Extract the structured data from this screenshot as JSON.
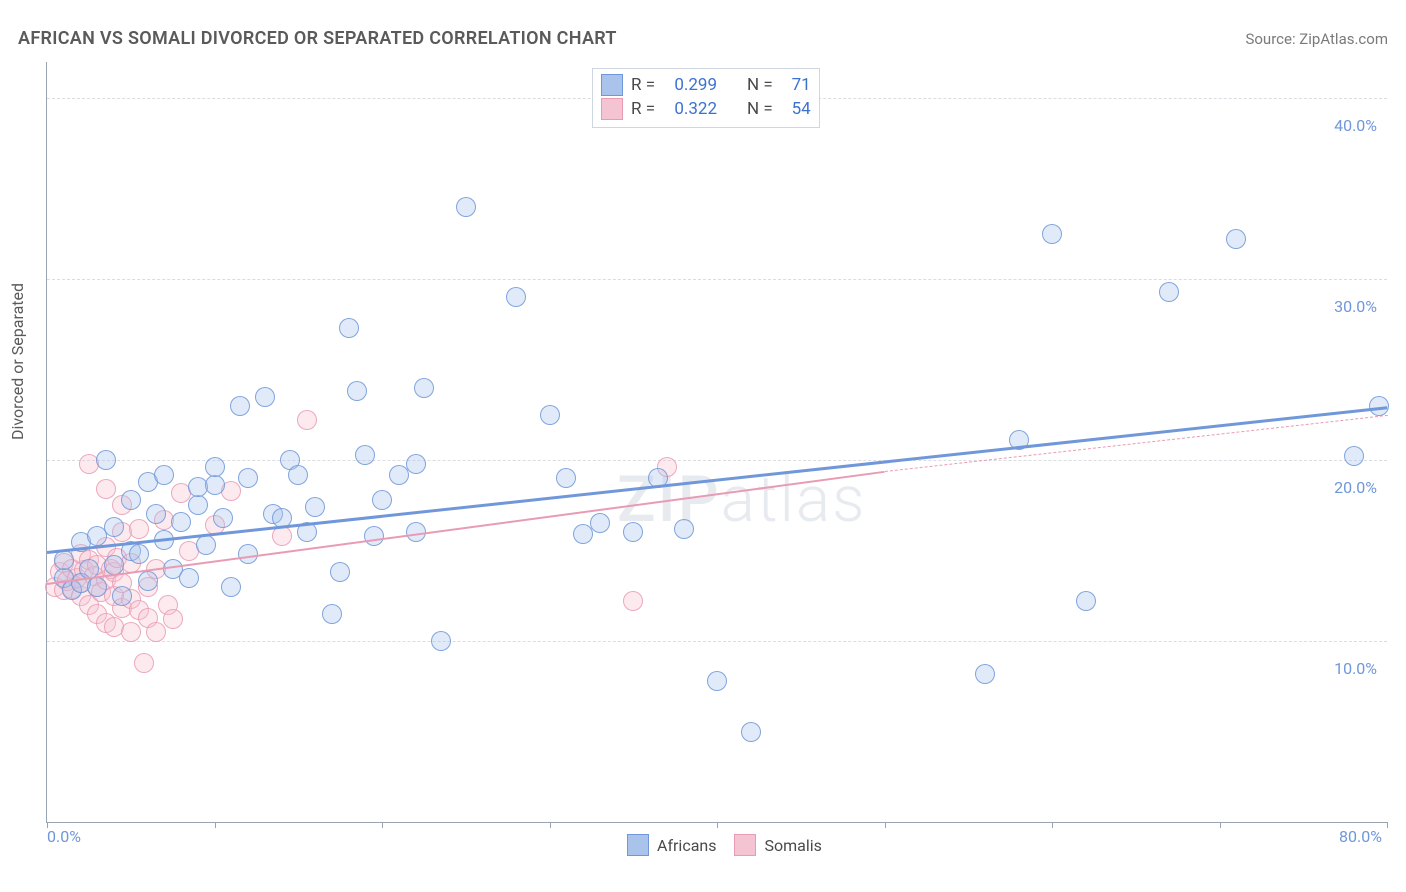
{
  "title": "AFRICAN VS SOMALI DIVORCED OR SEPARATED CORRELATION CHART",
  "source": "Source: ZipAtlas.com",
  "watermark": "ZIPatlas",
  "ylabel": "Divorced or Separated",
  "chart": {
    "type": "scatter",
    "xlim": [
      0,
      80
    ],
    "ylim": [
      0,
      42
    ],
    "x_ticks": [
      0,
      10,
      20,
      30,
      40,
      50,
      60,
      70,
      80
    ],
    "x_tick_labels_shown": {
      "0": "0.0%",
      "80": "80.0%"
    },
    "y_gridlines": [
      10,
      20,
      30,
      40
    ],
    "y_tick_labels": {
      "10": "10.0%",
      "20": "20.0%",
      "30": "30.0%",
      "40": "40.0%"
    },
    "background_color": "#ffffff",
    "grid_color": "#d9dde2",
    "axis_color": "#9aa4b0",
    "tick_label_color": "#6f97d9",
    "marker_radius": 10,
    "marker_fill_opacity": 0.35,
    "marker_stroke_opacity": 0.85,
    "marker_stroke_width": 1.4,
    "series": {
      "africans": {
        "label": "Africans",
        "color": "#6f97d9",
        "fill": "#a9c3ea",
        "R": "0.299",
        "N": "71",
        "regression": {
          "x1": 0,
          "y1": 15.0,
          "x2": 80,
          "y2": 23.0,
          "width": 3
        },
        "points": [
          [
            1,
            13.5
          ],
          [
            1,
            14.5
          ],
          [
            1.5,
            12.8
          ],
          [
            2,
            13.2
          ],
          [
            2,
            15.5
          ],
          [
            2.5,
            14.0
          ],
          [
            3,
            13.0
          ],
          [
            3,
            15.8
          ],
          [
            3.5,
            20.0
          ],
          [
            4,
            14.2
          ],
          [
            4,
            16.3
          ],
          [
            4.5,
            12.5
          ],
          [
            5,
            15.0
          ],
          [
            5,
            17.8
          ],
          [
            5.5,
            14.8
          ],
          [
            6,
            13.3
          ],
          [
            6,
            18.8
          ],
          [
            6.5,
            17.0
          ],
          [
            7,
            15.6
          ],
          [
            7,
            19.2
          ],
          [
            7.5,
            14.0
          ],
          [
            8,
            16.6
          ],
          [
            8.5,
            13.5
          ],
          [
            9,
            17.5
          ],
          [
            9,
            18.5
          ],
          [
            9.5,
            15.3
          ],
          [
            10,
            18.6
          ],
          [
            10,
            19.6
          ],
          [
            10.5,
            16.8
          ],
          [
            11,
            13.0
          ],
          [
            11.5,
            23.0
          ],
          [
            12,
            14.8
          ],
          [
            12,
            19.0
          ],
          [
            13,
            23.5
          ],
          [
            13.5,
            17.0
          ],
          [
            14,
            16.8
          ],
          [
            14.5,
            20.0
          ],
          [
            15,
            19.2
          ],
          [
            15.5,
            16.0
          ],
          [
            16,
            17.4
          ],
          [
            17,
            11.5
          ],
          [
            17.5,
            13.8
          ],
          [
            18,
            27.3
          ],
          [
            18.5,
            23.8
          ],
          [
            19,
            20.3
          ],
          [
            19.5,
            15.8
          ],
          [
            20,
            17.8
          ],
          [
            21,
            19.2
          ],
          [
            22,
            19.8
          ],
          [
            22,
            16.0
          ],
          [
            22.5,
            24.0
          ],
          [
            23.5,
            10.0
          ],
          [
            25,
            34.0
          ],
          [
            28,
            29.0
          ],
          [
            30,
            22.5
          ],
          [
            31,
            19.0
          ],
          [
            32,
            15.9
          ],
          [
            33,
            16.5
          ],
          [
            35,
            16.0
          ],
          [
            36.5,
            19.0
          ],
          [
            38,
            16.2
          ],
          [
            40,
            7.8
          ],
          [
            42,
            5.0
          ],
          [
            56,
            8.2
          ],
          [
            58,
            21.1
          ],
          [
            60,
            32.5
          ],
          [
            62,
            12.2
          ],
          [
            67,
            29.3
          ],
          [
            71,
            32.2
          ],
          [
            78,
            20.2
          ],
          [
            79.5,
            23.0
          ]
        ]
      },
      "somalis": {
        "label": "Somalis",
        "color": "#e99bb4",
        "fill": "#f5c4d2",
        "R": "0.322",
        "N": "54",
        "regression": {
          "x1": 0,
          "y1": 13.2,
          "x2": 50,
          "y2": 19.4,
          "width": 2.2,
          "dash_ext": {
            "x1": 50,
            "y1": 19.4,
            "x2": 80,
            "y2": 22.5
          }
        },
        "points": [
          [
            0.5,
            13.0
          ],
          [
            0.8,
            13.8
          ],
          [
            1,
            12.8
          ],
          [
            1,
            14.3
          ],
          [
            1.2,
            13.3
          ],
          [
            1.5,
            12.9
          ],
          [
            1.5,
            14.0
          ],
          [
            1.8,
            13.5
          ],
          [
            2,
            12.5
          ],
          [
            2,
            13.2
          ],
          [
            2,
            14.8
          ],
          [
            2.2,
            13.9
          ],
          [
            2.5,
            12.0
          ],
          [
            2.5,
            14.5
          ],
          [
            2.5,
            19.8
          ],
          [
            2.8,
            13.6
          ],
          [
            3,
            11.5
          ],
          [
            3,
            13.0
          ],
          [
            3,
            14.2
          ],
          [
            3.2,
            12.7
          ],
          [
            3.5,
            11.0
          ],
          [
            3.5,
            13.4
          ],
          [
            3.5,
            15.2
          ],
          [
            3.5,
            18.4
          ],
          [
            3.8,
            14.0
          ],
          [
            4,
            10.8
          ],
          [
            4,
            12.5
          ],
          [
            4,
            13.8
          ],
          [
            4.2,
            14.6
          ],
          [
            4.5,
            11.8
          ],
          [
            4.5,
            13.2
          ],
          [
            4.5,
            16.0
          ],
          [
            4.5,
            17.5
          ],
          [
            5,
            10.5
          ],
          [
            5,
            12.3
          ],
          [
            5,
            14.3
          ],
          [
            5.5,
            11.7
          ],
          [
            5.5,
            16.2
          ],
          [
            5.8,
            8.8
          ],
          [
            6,
            11.3
          ],
          [
            6,
            13.0
          ],
          [
            6.5,
            10.5
          ],
          [
            6.5,
            14.0
          ],
          [
            7,
            16.7
          ],
          [
            7.2,
            12.0
          ],
          [
            7.5,
            11.2
          ],
          [
            8,
            18.2
          ],
          [
            8.5,
            15.0
          ],
          [
            10,
            16.4
          ],
          [
            11,
            18.3
          ],
          [
            14,
            15.8
          ],
          [
            15.5,
            22.2
          ],
          [
            35,
            12.2
          ],
          [
            37,
            19.6
          ]
        ]
      }
    },
    "stats_box": {
      "rows": [
        {
          "swatch_fill": "#a9c3ea",
          "swatch_border": "#6f97d9",
          "R": "0.299",
          "N": "71"
        },
        {
          "swatch_fill": "#f5c4d2",
          "swatch_border": "#e99bb4",
          "R": "0.322",
          "N": "54"
        }
      ],
      "labels": {
        "R": "R =",
        "N": "N ="
      }
    },
    "legend": [
      {
        "label": "Africans",
        "fill": "#a9c3ea",
        "border": "#6f97d9"
      },
      {
        "label": "Somalis",
        "fill": "#f5c4d2",
        "border": "#e99bb4"
      }
    ]
  }
}
